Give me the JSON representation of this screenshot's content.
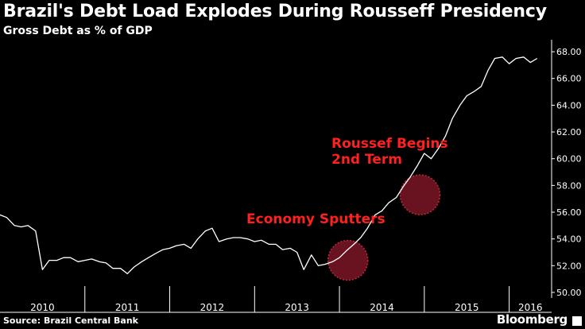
{
  "header": {
    "title": "Brazil's Debt Load Explodes During Rousseff Presidency",
    "subtitle": "Gross Debt as % of GDP"
  },
  "footer": {
    "source": "Source: Brazil Central Bank",
    "brand": "Bloomberg"
  },
  "colors": {
    "background": "#000000",
    "line": "#ffffff",
    "annotation_text": "#ff2020",
    "annotation_marker": "#8b1a2a"
  },
  "annotations": [
    {
      "text_lines": [
        "Economy Sputters"
      ],
      "x": 2014.1,
      "y": 52.4
    },
    {
      "text_lines": [
        "Roussef Begins",
        "2nd Term"
      ],
      "x": 2014.95,
      "y": 57.3
    }
  ],
  "chart_data": {
    "type": "line",
    "title": "Brazil's Debt Load Explodes During Rousseff Presidency",
    "subtitle": "Gross Debt as % of GDP",
    "xlabel": "",
    "ylabel": "",
    "xlim": [
      2010.0,
      2016.5
    ],
    "ylim": [
      49.7,
      68.6
    ],
    "yticks": [
      50.0,
      52.0,
      54.0,
      56.0,
      58.0,
      60.0,
      62.0,
      64.0,
      66.0,
      68.0
    ],
    "ytick_labels": [
      "50.00",
      "52.00",
      "54.00",
      "56.00",
      "58.00",
      "60.00",
      "62.00",
      "64.00",
      "66.00",
      "68.00"
    ],
    "year_labels": [
      "2010",
      "2011",
      "2012",
      "2013",
      "2014",
      "2015",
      "2016"
    ],
    "year_boundaries": [
      2011.0,
      2012.0,
      2013.0,
      2014.0,
      2015.0,
      2016.0
    ],
    "grid": false,
    "y_axis_side": "right",
    "series": [
      {
        "x": [
          2010.0,
          2010.08,
          2010.17,
          2010.25,
          2010.33,
          2010.42,
          2010.5,
          2010.58,
          2010.67,
          2010.75,
          2010.83,
          2010.92,
          2011.0,
          2011.08,
          2011.17,
          2011.25,
          2011.33,
          2011.42,
          2011.5,
          2011.58,
          2011.67,
          2011.75,
          2011.83,
          2011.92,
          2012.0,
          2012.08,
          2012.17,
          2012.25,
          2012.33,
          2012.42,
          2012.5,
          2012.58,
          2012.67,
          2012.75,
          2012.83,
          2012.92,
          2013.0,
          2013.08,
          2013.17,
          2013.25,
          2013.33,
          2013.42,
          2013.5,
          2013.58,
          2013.67,
          2013.75,
          2013.83,
          2013.92,
          2014.0,
          2014.08,
          2014.17,
          2014.25,
          2014.33,
          2014.42,
          2014.5,
          2014.58,
          2014.67,
          2014.75,
          2014.83,
          2014.92,
          2015.0,
          2015.08,
          2015.17,
          2015.25,
          2015.33,
          2015.42,
          2015.5,
          2015.58,
          2015.67,
          2015.75,
          2015.83,
          2015.92,
          2016.0,
          2016.08,
          2016.17,
          2016.25,
          2016.33
        ],
        "values": [
          55.8,
          55.6,
          55.0,
          54.9,
          55.0,
          54.6,
          51.7,
          52.4,
          52.4,
          52.6,
          52.6,
          52.3,
          52.4,
          52.5,
          52.3,
          52.2,
          51.8,
          51.8,
          51.4,
          51.9,
          52.3,
          52.6,
          52.9,
          53.2,
          53.3,
          53.5,
          53.6,
          53.3,
          54.0,
          54.6,
          54.8,
          53.8,
          54.0,
          54.1,
          54.1,
          54.0,
          53.8,
          53.9,
          53.6,
          53.6,
          53.2,
          53.3,
          53.0,
          51.7,
          52.8,
          52.0,
          52.1,
          52.3,
          52.6,
          53.1,
          53.6,
          54.1,
          54.8,
          55.8,
          56.1,
          56.7,
          57.1,
          57.9,
          58.6,
          59.5,
          60.4,
          60.0,
          60.8,
          61.7,
          63.0,
          64.0,
          64.7,
          65.0,
          65.4,
          66.6,
          67.5,
          67.6,
          67.1,
          67.5,
          67.6,
          67.2,
          67.5
        ]
      }
    ]
  }
}
